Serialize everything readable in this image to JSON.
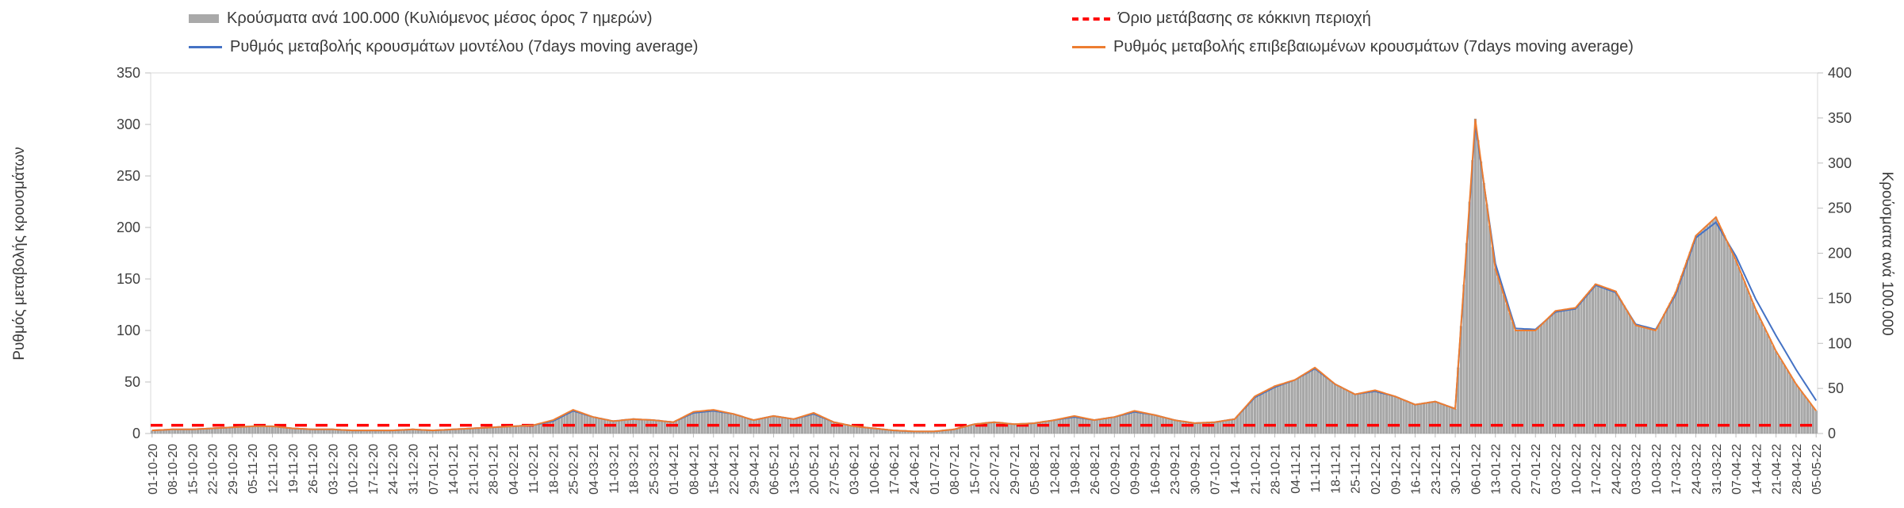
{
  "chart": {
    "left_axis_title": "Ρυθμός μεταβολής κρουσμάτων",
    "right_axis_title": "Κρούσματα ανά 100.000",
    "legend": {
      "bars_label": "Κρούσματα ανά 100.000 (Κυλιόμενος μέσος όρος 7 ημερών)",
      "threshold_label": "Όριο μετάβασης σε κόκκινη περιοχή",
      "model_label": "Ρυθμός μεταβολής κρουσμάτων μοντέλου (7days moving average)",
      "confirmed_label": "Ρυθμός μεταβολής επιβεβαιωμένων κρουσμάτων (7days moving average)"
    },
    "colors": {
      "bars": "#a9a9a9",
      "model_line": "#4472C4",
      "confirmed_line": "#ED7D31",
      "threshold": "#FF0000"
    }
  },
  "chart_data": {
    "type": "bar",
    "title": "",
    "xlabel": "",
    "left_ylabel": "Ρυθμός μεταβολής κρουσμάτων",
    "right_ylabel": "Κρούσματα ανά 100.000",
    "left_ylim": [
      0,
      350
    ],
    "right_ylim": [
      0,
      400
    ],
    "tick_step": 50,
    "grid": false,
    "legend_position": "top",
    "categories": [
      "01-10-20",
      "08-10-20",
      "15-10-20",
      "22-10-20",
      "29-10-20",
      "05-11-20",
      "12-11-20",
      "19-11-20",
      "26-11-20",
      "03-12-20",
      "10-12-20",
      "17-12-20",
      "24-12-20",
      "31-12-20",
      "07-01-21",
      "14-01-21",
      "21-01-21",
      "28-01-21",
      "04-02-21",
      "11-02-21",
      "18-02-21",
      "25-02-21",
      "04-03-21",
      "11-03-21",
      "18-03-21",
      "25-03-21",
      "01-04-21",
      "08-04-21",
      "15-04-21",
      "22-04-21",
      "29-04-21",
      "06-05-21",
      "13-05-21",
      "20-05-21",
      "27-05-21",
      "03-06-21",
      "10-06-21",
      "17-06-21",
      "24-06-21",
      "01-07-21",
      "08-07-21",
      "15-07-21",
      "22-07-21",
      "29-07-21",
      "05-08-21",
      "12-08-21",
      "19-08-21",
      "26-08-21",
      "02-09-21",
      "09-09-21",
      "16-09-21",
      "23-09-21",
      "30-09-21",
      "07-10-21",
      "14-10-21",
      "21-10-21",
      "28-10-21",
      "04-11-21",
      "11-11-21",
      "18-11-21",
      "25-11-21",
      "02-12-21",
      "09-12-21",
      "16-12-21",
      "23-12-21",
      "30-12-21",
      "06-01-22",
      "13-01-22",
      "20-01-22",
      "27-01-22",
      "03-02-22",
      "10-02-22",
      "17-02-22",
      "24-02-22",
      "03-03-22",
      "10-03-22",
      "17-03-22",
      "24-03-22",
      "31-03-22",
      "07-04-22",
      "14-04-22",
      "21-04-22",
      "28-04-22",
      "05-05-22"
    ],
    "series": [
      {
        "name": "Κρούσματα ανά 100.000 (Κυλιόμενος μέσος όρος 7 ημερών)",
        "type": "bar",
        "axis": "right",
        "color": "#a9a9a9",
        "values": [
          3,
          5,
          5,
          6,
          7,
          8,
          8,
          6,
          5,
          5,
          3,
          3,
          3,
          5,
          3,
          5,
          6,
          7,
          8,
          9,
          15,
          26,
          18,
          14,
          16,
          15,
          13,
          24,
          26,
          22,
          15,
          19,
          16,
          23,
          13,
          8,
          6,
          3,
          2,
          2,
          5,
          10,
          13,
          10,
          11,
          15,
          19,
          15,
          18,
          25,
          21,
          15,
          11,
          13,
          16,
          41,
          53,
          59,
          73,
          55,
          43,
          48,
          41,
          32,
          35,
          27,
          349,
          183,
          114,
          114,
          136,
          139,
          166,
          158,
          120,
          114,
          157,
          219,
          240,
          192,
          137,
          91,
          55,
          25
        ]
      },
      {
        "name": "Ρυθμός μεταβολής κρουσμάτων μοντέλου (7days moving average)",
        "type": "line",
        "axis": "left",
        "color": "#4472C4",
        "values": [
          3,
          4,
          4,
          5,
          6,
          7,
          7,
          5,
          4,
          4,
          3,
          3,
          3,
          4,
          3,
          4,
          5,
          6,
          7,
          8,
          12,
          22,
          16,
          12,
          14,
          13,
          11,
          20,
          22,
          19,
          13,
          17,
          14,
          19,
          11,
          7,
          5,
          3,
          2,
          2,
          4,
          9,
          11,
          9,
          10,
          13,
          16,
          13,
          16,
          21,
          18,
          13,
          10,
          11,
          14,
          35,
          45,
          52,
          63,
          48,
          38,
          41,
          36,
          28,
          31,
          24,
          300,
          165,
          102,
          101,
          118,
          121,
          144,
          137,
          106,
          101,
          135,
          190,
          205,
          172,
          130,
          95,
          62,
          32
        ]
      },
      {
        "name": "Ρυθμός μεταβολής επιβεβαιωμένων κρουσμάτων (7days moving average)",
        "type": "line",
        "axis": "left",
        "color": "#ED7D31",
        "values": [
          3,
          4,
          4,
          5,
          6,
          7,
          7,
          5,
          4,
          4,
          3,
          3,
          3,
          4,
          3,
          4,
          5,
          6,
          7,
          8,
          13,
          23,
          16,
          12,
          14,
          13,
          11,
          21,
          23,
          19,
          13,
          17,
          14,
          20,
          11,
          7,
          5,
          3,
          2,
          2,
          4,
          9,
          11,
          9,
          10,
          13,
          17,
          13,
          16,
          22,
          18,
          13,
          10,
          11,
          14,
          36,
          46,
          52,
          64,
          48,
          38,
          42,
          36,
          28,
          31,
          24,
          305,
          160,
          100,
          100,
          119,
          122,
          145,
          138,
          105,
          100,
          137,
          192,
          210,
          168,
          120,
          80,
          48,
          22
        ]
      },
      {
        "name": "Όριο μετάβασης σε κόκκινη περιοχή",
        "type": "threshold",
        "axis": "left",
        "color": "#FF0000",
        "value": 8
      }
    ]
  }
}
